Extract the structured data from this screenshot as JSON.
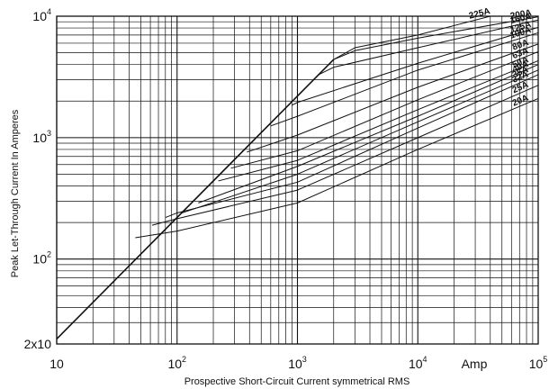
{
  "chart_data": {
    "type": "line",
    "title": "",
    "xlabel": "Prospective Short-Circuit Current symmetrical RMS",
    "ylabel": "Peak Let-Through Current In Amperes",
    "x_unit": "Amp",
    "x_scale": "log",
    "y_scale": "log",
    "xlim": [
      10,
      100000
    ],
    "ylim": [
      20,
      10000
    ],
    "grid": true,
    "x_ticks": [
      {
        "base": "10",
        "exp": ""
      },
      {
        "base": "10",
        "exp": "2"
      },
      {
        "base": "10",
        "exp": "3"
      },
      {
        "base": "10",
        "exp": "4"
      },
      {
        "base": "10",
        "exp": "5"
      }
    ],
    "y_ticks": [
      {
        "base": "2x10",
        "exp": ""
      },
      {
        "base": "10",
        "exp": "2"
      },
      {
        "base": "10",
        "exp": "3"
      },
      {
        "base": "10",
        "exp": "4"
      }
    ],
    "limit_line": {
      "x": [
        10,
        2000
      ],
      "y": [
        22,
        4400
      ]
    },
    "series": [
      {
        "name": "20A",
        "x": [
          45,
          100,
          1000,
          10000,
          100000
        ],
        "y": [
          150,
          170,
          290,
          800,
          2100
        ]
      },
      {
        "name": "25A",
        "x": [
          62,
          100,
          1000,
          10000,
          100000
        ],
        "y": [
          190,
          215,
          370,
          1000,
          2700
        ]
      },
      {
        "name": "32A",
        "x": [
          80,
          100,
          1000,
          10000,
          100000
        ],
        "y": [
          220,
          240,
          430,
          1200,
          3300
        ]
      },
      {
        "name": "35A",
        "x": [
          110,
          1000,
          10000,
          100000
        ],
        "y": [
          240,
          500,
          1350,
          3600
        ]
      },
      {
        "name": "40A",
        "x": [
          150,
          1000,
          10000,
          100000
        ],
        "y": [
          290,
          580,
          1500,
          4000
        ]
      },
      {
        "name": "50A",
        "x": [
          220,
          1000,
          10000,
          100000
        ],
        "y": [
          440,
          650,
          1700,
          4300
        ]
      },
      {
        "name": "63A",
        "x": [
          280,
          1000,
          10000,
          100000
        ],
        "y": [
          560,
          780,
          2050,
          5100
        ]
      },
      {
        "name": "80A",
        "x": [
          380,
          1000,
          10000,
          100000
        ],
        "y": [
          760,
          1050,
          2600,
          5900
        ]
      },
      {
        "name": "100A",
        "x": [
          600,
          1000,
          10000,
          100000
        ],
        "y": [
          1250,
          1500,
          3600,
          7300
        ]
      },
      {
        "name": "125A",
        "x": [
          900,
          1000,
          10000,
          100000
        ],
        "y": [
          1850,
          1950,
          4100,
          8100
        ]
      },
      {
        "name": "160A",
        "x": [
          1500,
          2000,
          10000,
          100000
        ],
        "y": [
          3300,
          3800,
          5500,
          9300
        ]
      },
      {
        "name": "200A",
        "x": [
          2000,
          3000,
          10000,
          100000
        ],
        "y": [
          4400,
          5200,
          6600,
          9900
        ]
      },
      {
        "name": "225A",
        "x": [
          2000,
          3000,
          10000,
          40000
        ],
        "y": [
          4400,
          5500,
          7000,
          10000
        ]
      }
    ]
  }
}
